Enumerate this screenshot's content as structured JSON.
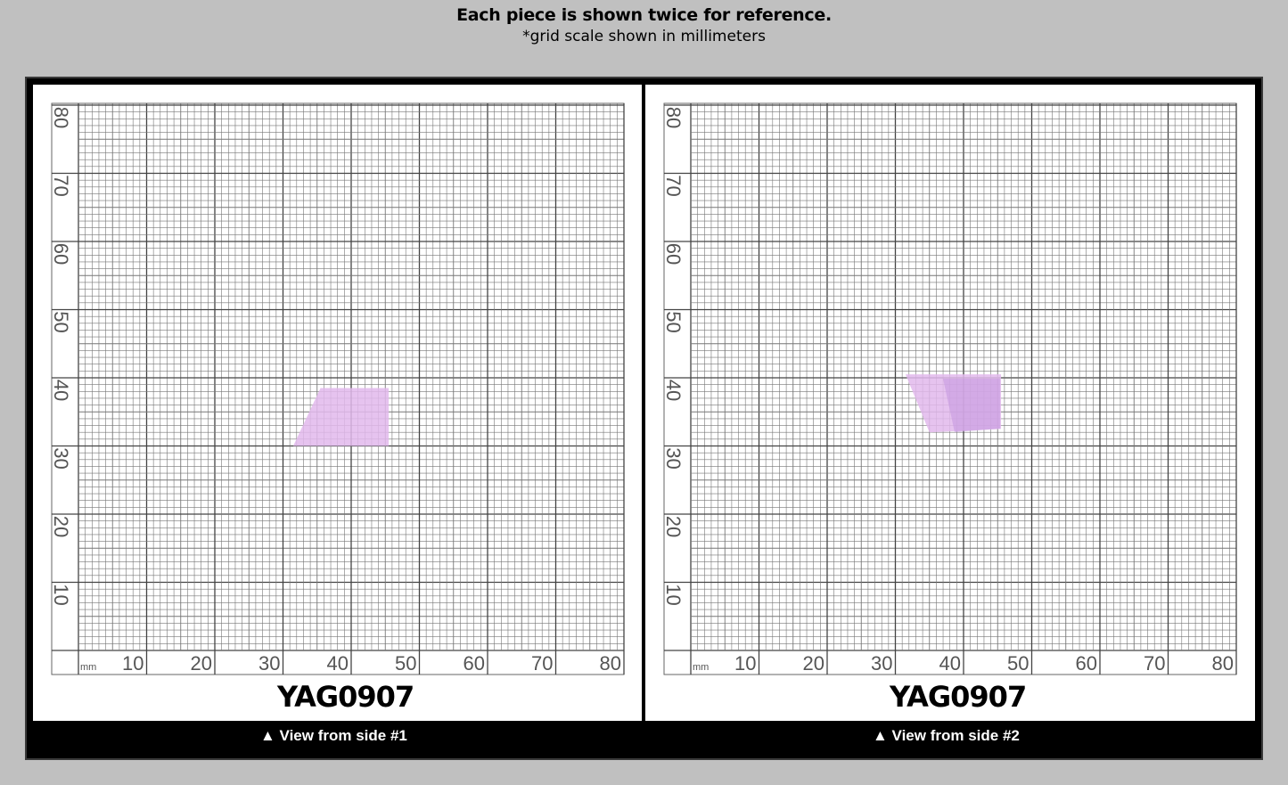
{
  "header": {
    "title": "Each piece is shown twice for reference.",
    "subtitle": "*grid scale shown in millimeters"
  },
  "views": [
    {
      "code": "YAG0907",
      "caption": "▲ View from side #1"
    },
    {
      "code": "YAG0907",
      "caption": "▲ View from side #2"
    }
  ],
  "grid": {
    "unit_label": "mm",
    "x_labels": [
      "10",
      "20",
      "30",
      "40",
      "50",
      "60",
      "70",
      "80"
    ],
    "y_labels": [
      "80",
      "70",
      "60",
      "50",
      "40",
      "30",
      "20",
      "10"
    ],
    "range_mm": [
      0,
      80
    ]
  },
  "crystal": {
    "color": "#e2b8ec",
    "color_dark": "#c79ae0",
    "side1_outline_mm": [
      [
        35.5,
        38.5
      ],
      [
        45.5,
        38.5
      ],
      [
        45.5,
        30
      ],
      [
        31.5,
        30
      ]
    ],
    "side2_outline_mm": [
      [
        31.5,
        40.5
      ],
      [
        45.5,
        40.5
      ],
      [
        45.5,
        32.5
      ],
      [
        35,
        32
      ]
    ]
  },
  "colors": {
    "background": "#c0c0c0",
    "frame": "#000000",
    "grid_line": "#555555"
  }
}
